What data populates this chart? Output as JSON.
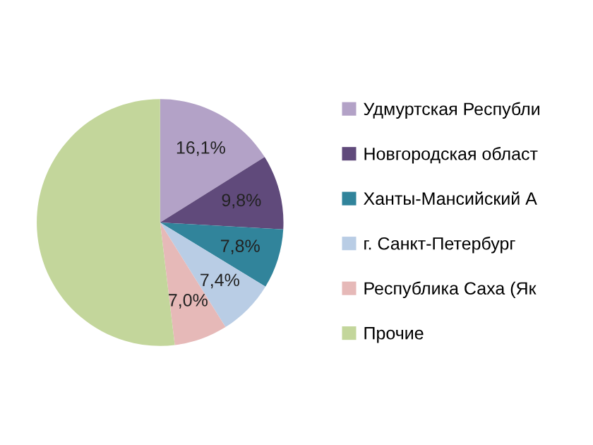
{
  "chart_data": {
    "type": "pie",
    "categories": [
      "Удмуртская Республи",
      "Новгородская област",
      "Ханты-Мансийский А",
      "г. Санкт-Петербург",
      "Республика Саха (Як",
      "Прочие"
    ],
    "values": [
      16.1,
      9.8,
      7.8,
      7.4,
      7.0,
      51.9
    ],
    "colors": [
      "#b3a2c7",
      "#604a7b",
      "#31849b",
      "#b9cde5",
      "#e6b9b8",
      "#c3d69b"
    ],
    "value_labels": [
      "16,1%",
      "9,8%",
      "7,8%",
      "7,4%",
      "7,0%",
      null
    ],
    "legend": "right"
  }
}
